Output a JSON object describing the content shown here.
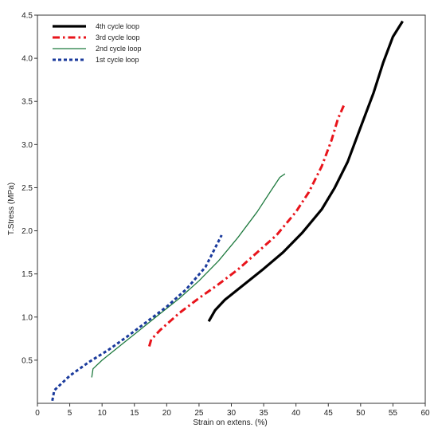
{
  "chart_data": {
    "type": "line",
    "xlabel": "Strain on extens. (%)",
    "ylabel": "T.Stress (MPa)",
    "xlim": [
      0,
      60
    ],
    "ylim": [
      0,
      4.5
    ],
    "x_ticks": [
      "0",
      "5",
      "10",
      "15",
      "20",
      "25",
      "30",
      "35",
      "40",
      "45",
      "50",
      "55",
      "60"
    ],
    "y_ticks": [
      "0.5",
      "1.0",
      "1.5",
      "2.0",
      "2.5",
      "3.0",
      "3.5",
      "4.0",
      "4.5"
    ],
    "grid": false,
    "legend_position": "top-left",
    "series": [
      {
        "name": "4th cycle loop",
        "color": "#000000",
        "line_style": "solid-thick",
        "points": [
          [
            26.5,
            0.95
          ],
          [
            27.5,
            1.08
          ],
          [
            29.0,
            1.2
          ],
          [
            32.0,
            1.38
          ],
          [
            35.0,
            1.56
          ],
          [
            38.0,
            1.75
          ],
          [
            41.0,
            1.98
          ],
          [
            44.0,
            2.25
          ],
          [
            46.0,
            2.5
          ],
          [
            48.0,
            2.8
          ],
          [
            50.0,
            3.2
          ],
          [
            52.0,
            3.6
          ],
          [
            53.5,
            3.95
          ],
          [
            55.0,
            4.25
          ],
          [
            56.5,
            4.43
          ]
        ]
      },
      {
        "name": "3rd cycle loop",
        "color": "#e8141b",
        "line_style": "dash-dot",
        "points": [
          [
            17.3,
            0.66
          ],
          [
            17.6,
            0.74
          ],
          [
            19.0,
            0.85
          ],
          [
            22.0,
            1.05
          ],
          [
            25.0,
            1.22
          ],
          [
            28.0,
            1.38
          ],
          [
            31.0,
            1.55
          ],
          [
            34.0,
            1.75
          ],
          [
            37.0,
            1.95
          ],
          [
            40.0,
            2.22
          ],
          [
            42.0,
            2.45
          ],
          [
            44.0,
            2.75
          ],
          [
            45.5,
            3.05
          ],
          [
            46.5,
            3.3
          ],
          [
            47.5,
            3.47
          ]
        ]
      },
      {
        "name": "2nd cycle loop",
        "color": "#1f7a3f",
        "line_style": "solid-thin",
        "points": [
          [
            8.4,
            0.3
          ],
          [
            8.6,
            0.4
          ],
          [
            10.0,
            0.5
          ],
          [
            13.0,
            0.68
          ],
          [
            16.0,
            0.86
          ],
          [
            19.0,
            1.04
          ],
          [
            22.0,
            1.22
          ],
          [
            25.0,
            1.42
          ],
          [
            28.0,
            1.65
          ],
          [
            31.0,
            1.92
          ],
          [
            34.0,
            2.22
          ],
          [
            36.0,
            2.45
          ],
          [
            37.5,
            2.62
          ],
          [
            38.3,
            2.66
          ]
        ]
      },
      {
        "name": "1st cycle loop",
        "color": "#1a3a9c",
        "line_style": "dotted-thick",
        "points": [
          [
            2.3,
            0.03
          ],
          [
            2.6,
            0.15
          ],
          [
            5.0,
            0.32
          ],
          [
            8.0,
            0.48
          ],
          [
            11.0,
            0.62
          ],
          [
            14.0,
            0.78
          ],
          [
            17.0,
            0.95
          ],
          [
            20.0,
            1.12
          ],
          [
            23.0,
            1.32
          ],
          [
            26.0,
            1.58
          ],
          [
            28.5,
            1.95
          ]
        ]
      }
    ]
  }
}
